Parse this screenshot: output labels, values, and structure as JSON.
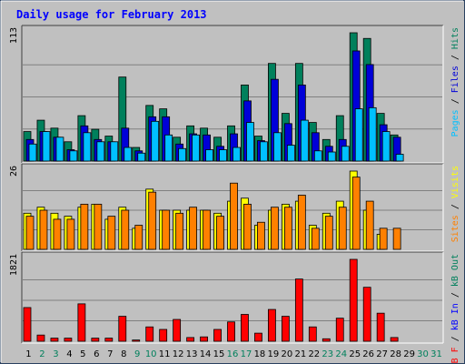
{
  "chart_data": {
    "type": "bar",
    "title": "Daily usage for February 2013",
    "categories": [
      "1",
      "2",
      "3",
      "4",
      "5",
      "6",
      "7",
      "8",
      "9",
      "10",
      "11",
      "12",
      "13",
      "14",
      "15",
      "16",
      "17",
      "18",
      "19",
      "20",
      "21",
      "22",
      "23",
      "24",
      "25",
      "26",
      "27",
      "28",
      "29",
      "30",
      "31"
    ],
    "weekend_days": [
      "2",
      "3",
      "9",
      "10",
      "16",
      "17",
      "23",
      "24",
      "30",
      "31"
    ],
    "colors": {
      "hits": "#00805c",
      "files": "#0000d8",
      "pages": "#00c0ff",
      "visits": "#ffff00",
      "sites": "#ff8000",
      "kb_f": "#ff0000",
      "kb_in": "#0000ff",
      "kb_out": "#00805c",
      "title": "#0000ff",
      "panel": "#c0c0c0",
      "frame": "#2a4060",
      "weekend_tick": "#00805c",
      "weekday_tick": "#000000"
    },
    "panels": [
      {
        "max_label": "113",
        "ymax": 113,
        "legend": [
          {
            "text": "Pages",
            "color": "#00c0ff"
          },
          {
            "text": " / ",
            "color": "#000000"
          },
          {
            "text": "Files",
            "color": "#0000d8"
          },
          {
            "text": " / ",
            "color": "#000000"
          },
          {
            "text": "Hits",
            "color": "#00805c"
          }
        ],
        "series": [
          {
            "name": "Hits",
            "color": "#00805c",
            "values": [
              26,
              36,
              29,
              17,
              40,
              28,
              22,
              74,
              12,
              49,
              46,
              21,
              31,
              29,
              21,
              31,
              67,
              22,
              86,
              42,
              86,
              34,
              19,
              40,
              113,
              108,
              42,
              23,
              0,
              0,
              0
            ]
          },
          {
            "name": "Files",
            "color": "#0000d8",
            "values": [
              19,
              26,
              21,
              10,
              31,
              19,
              17,
              29,
              9,
              39,
              39,
              15,
              24,
              23,
              13,
              24,
              53,
              18,
              72,
              33,
              67,
              25,
              13,
              19,
              97,
              85,
              32,
              21,
              0,
              0,
              0
            ]
          },
          {
            "name": "Pages",
            "color": "#00c0ff",
            "values": [
              15,
              26,
              21,
              9,
              25,
              17,
              17,
              12,
              7,
              35,
              23,
              11,
              23,
              10,
              10,
              12,
              34,
              17,
              25,
              14,
              36,
              9,
              8,
              13,
              46,
              47,
              26,
              6,
              0,
              0,
              0
            ]
          }
        ]
      },
      {
        "max_label": "26",
        "ymax": 26,
        "legend": [
          {
            "text": "Sites",
            "color": "#ff8000"
          },
          {
            "text": " / ",
            "color": "#000000"
          },
          {
            "text": "Visits",
            "color": "#ffff00"
          }
        ],
        "series": [
          {
            "name": "Visits",
            "color": "#ffff00",
            "values": [
              12,
              14,
              12,
              11,
              14,
              15,
              10,
              14,
              7,
              20,
              13,
              13,
              13,
              13,
              12,
              16,
              17,
              8,
              13,
              15,
              16,
              8,
              12,
              16,
              26,
              13,
              5,
              0,
              0,
              0,
              0
            ]
          },
          {
            "name": "Sites",
            "color": "#ff8000",
            "values": [
              11,
              13,
              10,
              10,
              15,
              15,
              11,
              13,
              8,
              19,
              13,
              12,
              14,
              13,
              11,
              22,
              15,
              9,
              14,
              14,
              18,
              7,
              11,
              14,
              24,
              16,
              7,
              7,
              0,
              0,
              0
            ]
          }
        ]
      },
      {
        "max_label": "1821",
        "ymax": 1821,
        "legend": [
          {
            "text": "kB F",
            "color": "#ff0000"
          },
          {
            "text": " / ",
            "color": "#000000"
          },
          {
            "text": "kB In",
            "color": "#0000ff"
          },
          {
            "text": " / ",
            "color": "#000000"
          },
          {
            "text": "kB Out",
            "color": "#00805c"
          }
        ],
        "series": [
          {
            "name": "kB F",
            "color": "#ff0000",
            "values": [
              749,
              138,
              69,
              69,
              832,
              69,
              69,
              555,
              28,
              319,
              263,
              485,
              83,
              97,
              263,
              430,
              597,
              180,
              707,
              555,
              1384,
              319,
              55,
              513,
              1821,
              1200,
              624,
              83,
              0,
              0,
              0
            ]
          }
        ]
      }
    ]
  }
}
